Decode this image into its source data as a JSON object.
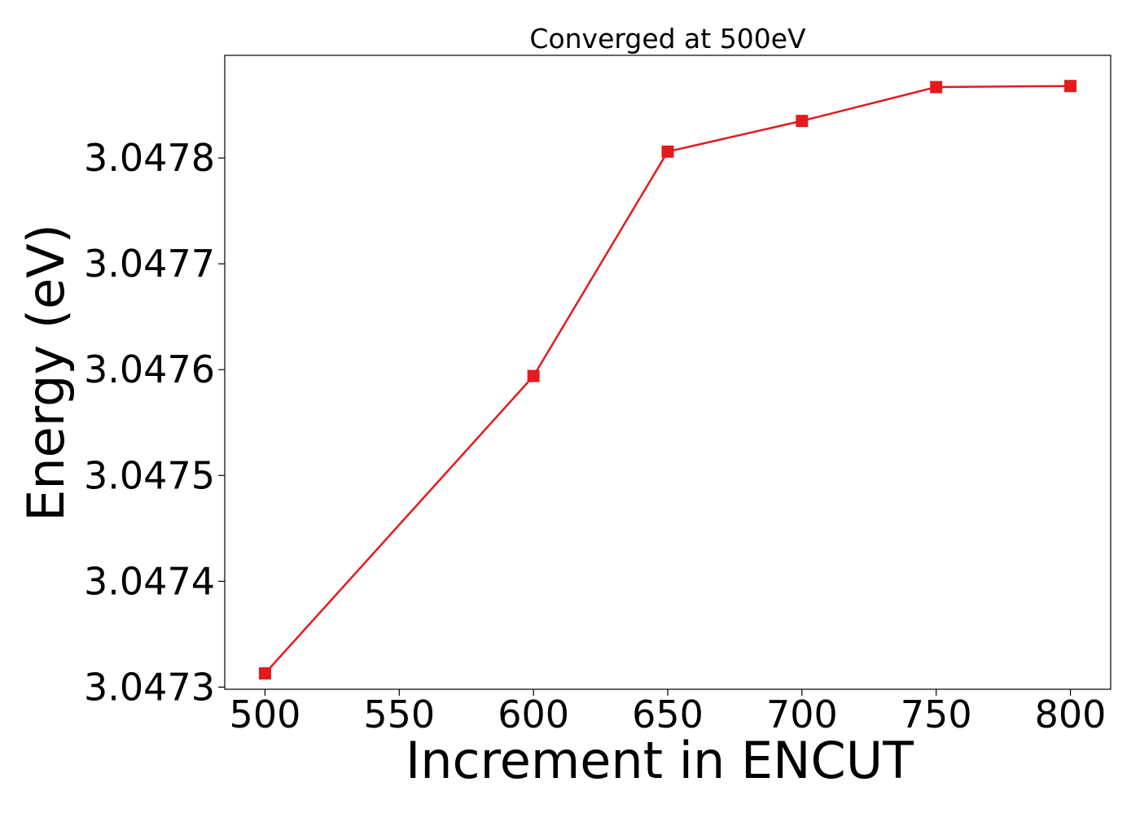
{
  "chart_data": {
    "type": "line",
    "title": "Converged at 500eV",
    "xlabel": "Increment in ENCUT",
    "ylabel": "Energy (eV)",
    "x": [
      500,
      600,
      650,
      700,
      750,
      800
    ],
    "series": [
      {
        "values": [
          3.047313,
          3.047594,
          3.047806,
          3.047835,
          3.047867,
          3.047868
        ],
        "color": "#e41a1c",
        "marker": "square"
      }
    ],
    "xlim": [
      485,
      815
    ],
    "ylim": [
      3.047298,
      3.047897
    ],
    "xticks": [
      500,
      550,
      600,
      650,
      700,
      750,
      800
    ],
    "xtick_labels": [
      "500",
      "550",
      "600",
      "650",
      "700",
      "750",
      "800"
    ],
    "yticks": [
      3.0473,
      3.0474,
      3.0475,
      3.0476,
      3.0477,
      3.0478
    ],
    "ytick_labels": [
      "3.0473",
      "3.0474",
      "3.0475",
      "3.0476",
      "3.0477",
      "3.0478"
    ],
    "grid": false,
    "legend": false
  }
}
